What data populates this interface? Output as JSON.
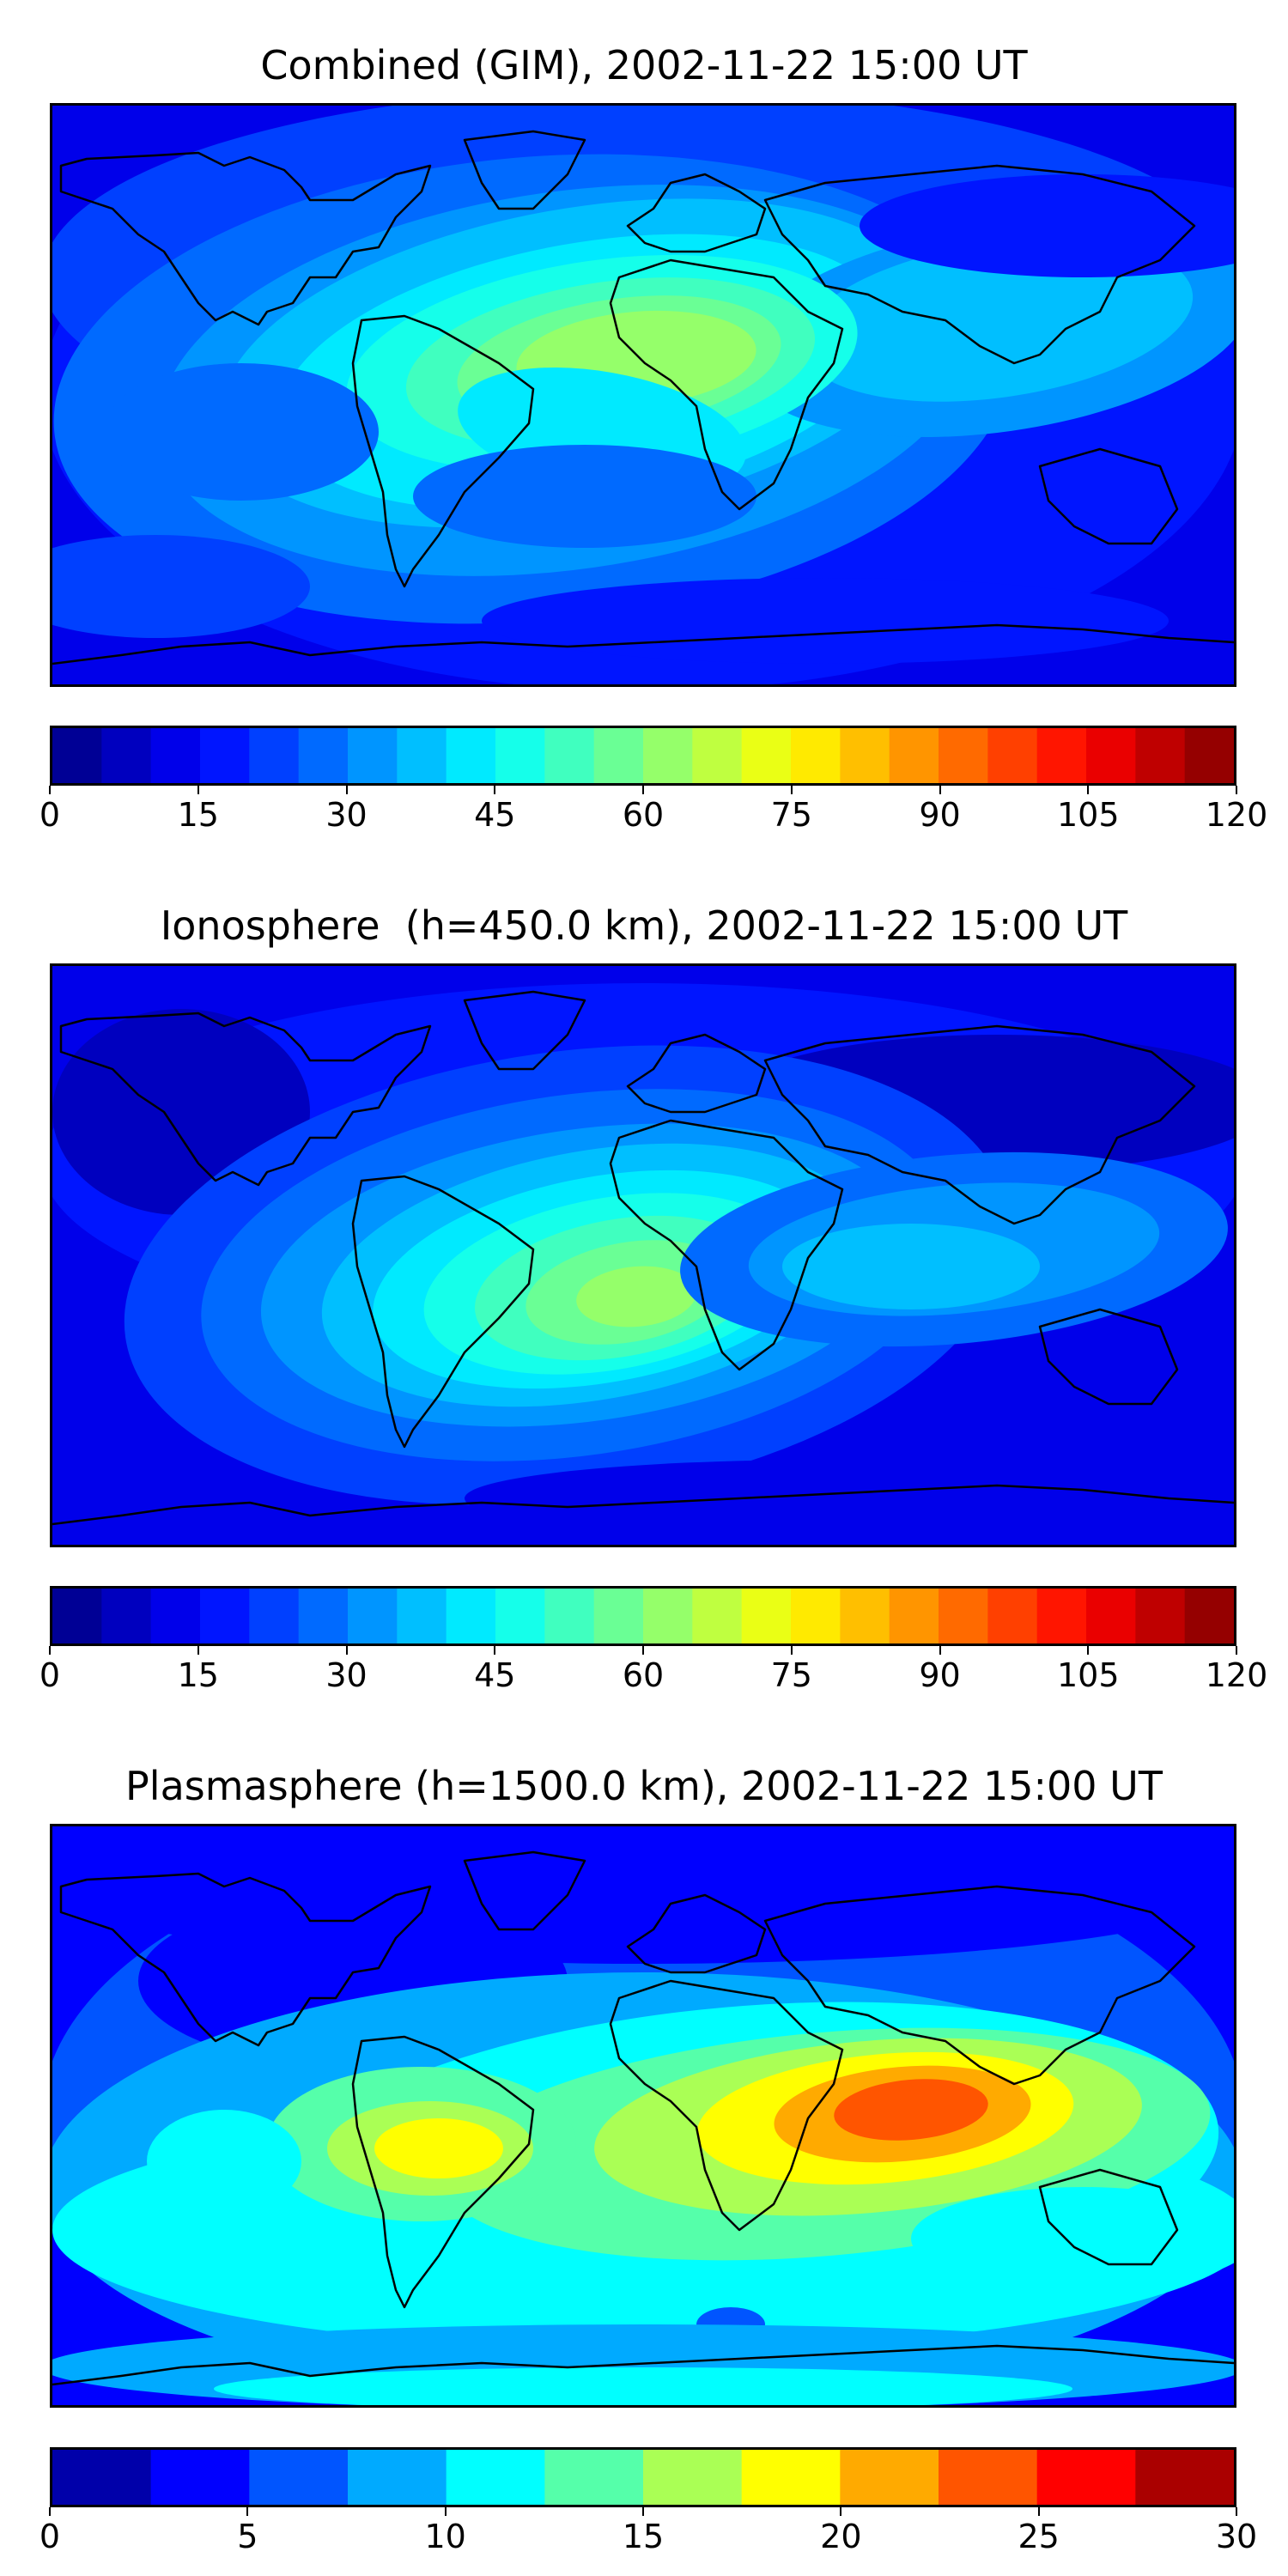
{
  "panels": [
    {
      "title": "Combined (GIM), 2002-11-22 15:00 UT",
      "colorbar": {
        "min": 0,
        "max": 120,
        "levels": 24,
        "ticks": [
          "0",
          "15",
          "30",
          "45",
          "60",
          "75",
          "90",
          "105",
          "120"
        ]
      }
    },
    {
      "title": "Ionosphere  (h=450.0 km), 2002-11-22 15:00 UT",
      "colorbar": {
        "min": 0,
        "max": 120,
        "levels": 24,
        "ticks": [
          "0",
          "15",
          "30",
          "45",
          "60",
          "75",
          "90",
          "105",
          "120"
        ]
      }
    },
    {
      "title": "Plasmasphere (h=1500.0 km), 2002-11-22 15:00 UT",
      "colorbar": {
        "min": 0,
        "max": 30,
        "levels": 12,
        "ticks": [
          "0",
          "5",
          "10",
          "15",
          "20",
          "25",
          "30"
        ]
      }
    }
  ],
  "colormap": "jet",
  "colors": {
    "coastline": "#000000",
    "land_outline": "#000000"
  }
}
